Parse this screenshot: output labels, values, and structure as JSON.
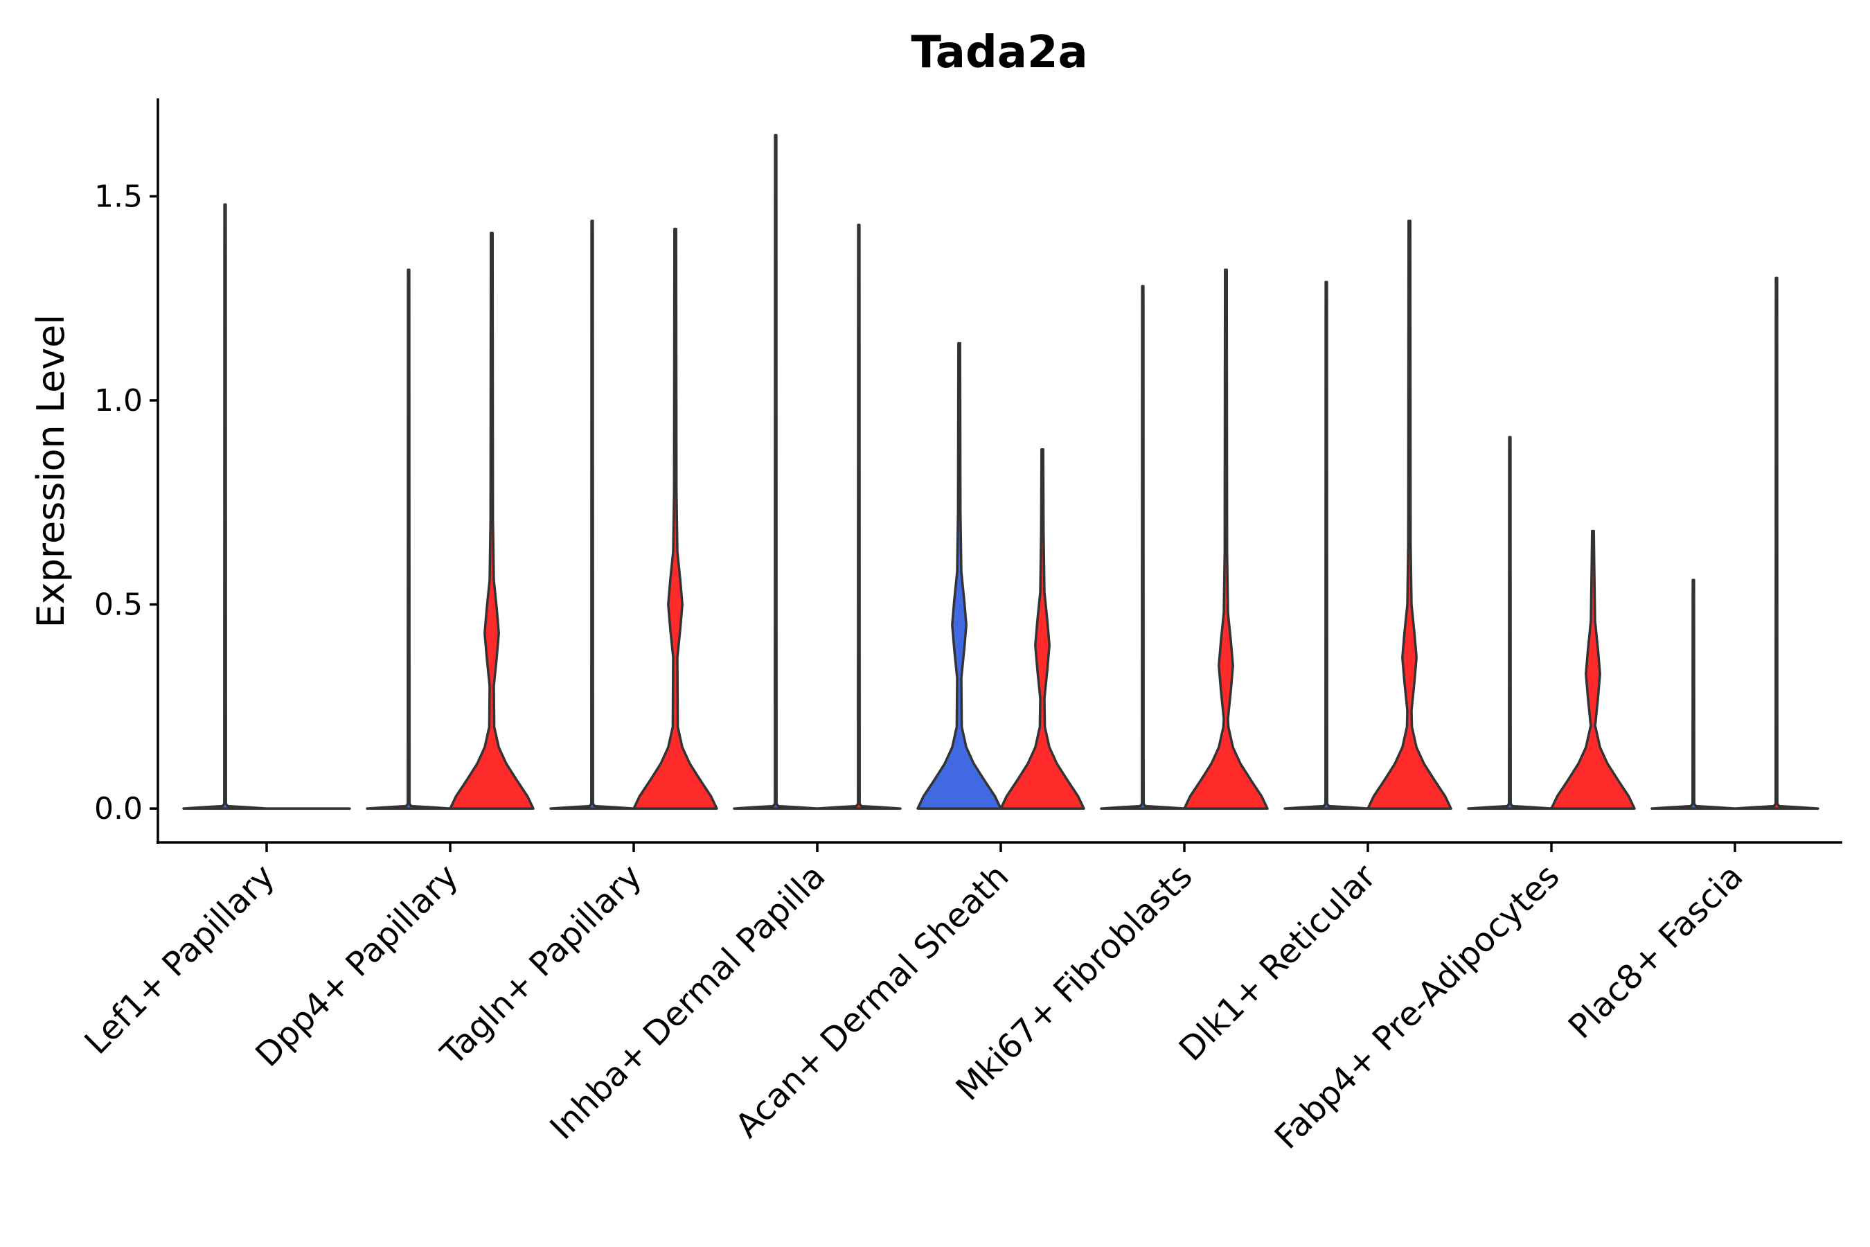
{
  "chart_data": {
    "type": "violin",
    "title": "Tada2a",
    "xlabel": "",
    "ylabel": "Expression Level",
    "ylim": [
      -0.083,
      1.74
    ],
    "yticks": [
      0.0,
      0.5,
      1.0,
      1.5
    ],
    "ytick_labels": [
      "0.0",
      "0.5",
      "1.0",
      "1.5"
    ],
    "legend": "none",
    "series": [
      {
        "name": "group_blue",
        "color": "#4169E1"
      },
      {
        "name": "group_red",
        "color": "#FF2A2A"
      }
    ],
    "categories": [
      "Lef1+ Papillary",
      "Dpp4+ Papillary",
      "Tagln+ Papillary",
      "Inhba+ Dermal Papilla",
      "Acan+ Dermal Sheath",
      "Mki67+ Fibroblasts",
      "Dlk1+ Reticular",
      "Fabp4+ Pre-Adipocytes",
      "Plac8+ Fascia"
    ],
    "violins": [
      {
        "category": 0,
        "series": "group_blue",
        "max": 1.48,
        "profile": "flat"
      },
      {
        "category": 0,
        "series": "group_red",
        "max": 0.0,
        "profile": "flat"
      },
      {
        "category": 1,
        "series": "group_blue",
        "max": 1.32,
        "profile": "flat"
      },
      {
        "category": 1,
        "series": "group_red",
        "max": 1.41,
        "profile": "mode_0.43"
      },
      {
        "category": 2,
        "series": "group_blue",
        "max": 1.44,
        "profile": "flat"
      },
      {
        "category": 2,
        "series": "group_red",
        "max": 1.42,
        "profile": "mode_0.50"
      },
      {
        "category": 3,
        "series": "group_blue",
        "max": 1.65,
        "profile": "flat"
      },
      {
        "category": 3,
        "series": "group_red",
        "max": 1.43,
        "profile": "flat"
      },
      {
        "category": 4,
        "series": "group_blue",
        "max": 1.14,
        "profile": "mode_0.45"
      },
      {
        "category": 4,
        "series": "group_red",
        "max": 0.88,
        "profile": "mode_0.40"
      },
      {
        "category": 5,
        "series": "group_blue",
        "max": 1.28,
        "profile": "flat"
      },
      {
        "category": 5,
        "series": "group_red",
        "max": 1.32,
        "profile": "mode_0.35"
      },
      {
        "category": 6,
        "series": "group_blue",
        "max": 1.29,
        "profile": "flat"
      },
      {
        "category": 6,
        "series": "group_red",
        "max": 1.44,
        "profile": "mode_0.37"
      },
      {
        "category": 7,
        "series": "group_blue",
        "max": 0.91,
        "profile": "flat"
      },
      {
        "category": 7,
        "series": "group_red",
        "max": 0.68,
        "profile": "mode_0.33"
      },
      {
        "category": 8,
        "series": "group_blue",
        "max": 0.56,
        "profile": "flat"
      },
      {
        "category": 8,
        "series": "group_red",
        "max": 1.3,
        "profile": "flat"
      }
    ]
  }
}
